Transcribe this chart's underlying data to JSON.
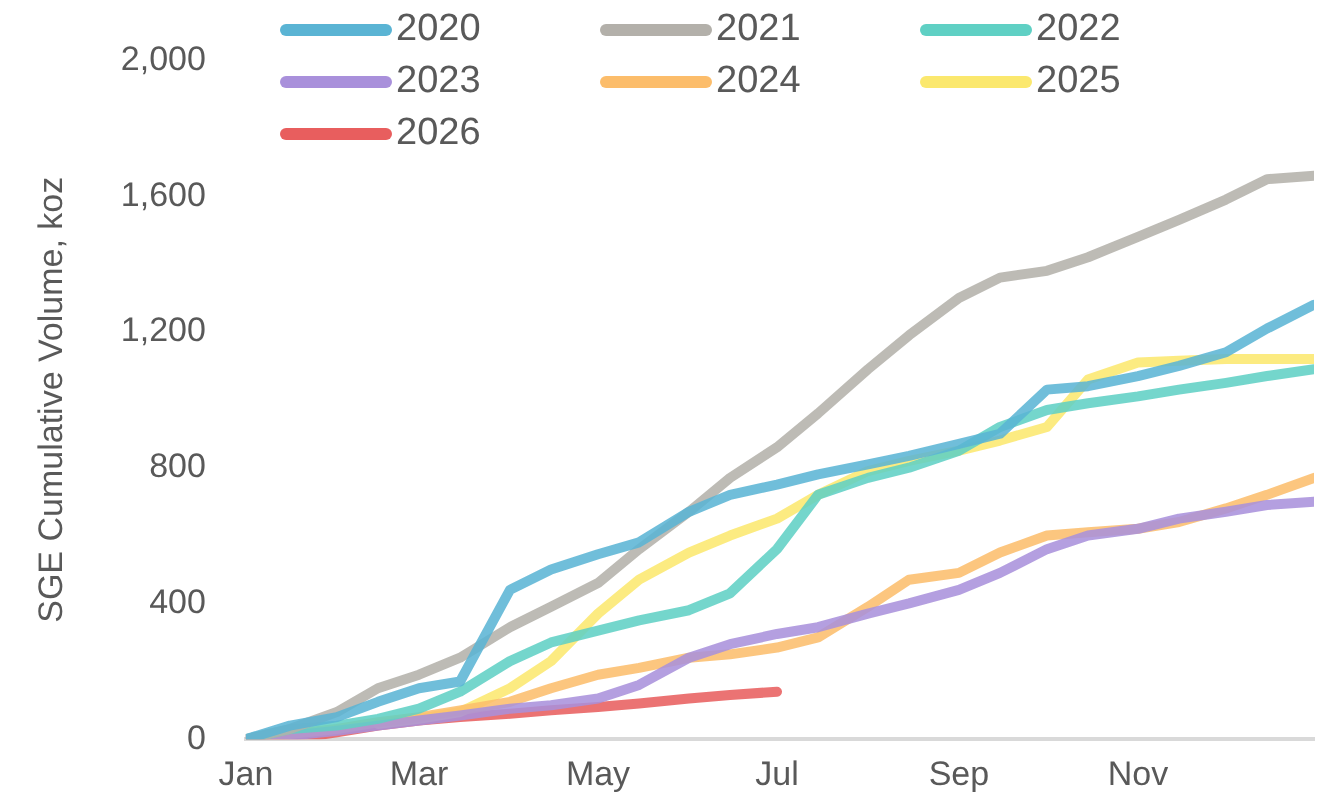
{
  "chart_data": {
    "type": "line",
    "ylabel": "SGE Cumulative Volume, koz",
    "x": [
      "--01-01",
      "--01-16",
      "--02-01",
      "--02-15",
      "--03-01",
      "--03-15",
      "--04-01",
      "--04-15",
      "--05-01",
      "--05-15",
      "--06-01",
      "--06-15",
      "--07-01",
      "--07-15",
      "--08-01",
      "--08-15",
      "--09-01",
      "--09-15",
      "--10-01",
      "--10-15",
      "--11-01",
      "--11-15",
      "--12-01",
      "--12-15",
      "--12-31"
    ],
    "series": [
      {
        "name": "2020",
        "color": "#5ab4d4",
        "values": [
          0,
          40,
          65,
          110,
          150,
          170,
          440,
          500,
          545,
          580,
          670,
          720,
          750,
          780,
          810,
          835,
          870,
          900,
          1030,
          1040,
          1070,
          1100,
          1140,
          1210,
          1280
        ]
      },
      {
        "name": "2021",
        "color": "#b3b0aa",
        "values": [
          0,
          30,
          80,
          150,
          190,
          240,
          330,
          390,
          460,
          560,
          670,
          770,
          860,
          960,
          1090,
          1190,
          1300,
          1360,
          1380,
          1420,
          1480,
          1530,
          1590,
          1650,
          1660
        ]
      },
      {
        "name": "2022",
        "color": "#5fd0c4",
        "values": [
          0,
          30,
          40,
          60,
          90,
          140,
          230,
          285,
          320,
          350,
          380,
          430,
          560,
          720,
          770,
          800,
          850,
          920,
          970,
          990,
          1010,
          1030,
          1050,
          1070,
          1090
        ]
      },
      {
        "name": "2023",
        "color": "#a990db",
        "values": [
          0,
          10,
          25,
          40,
          55,
          70,
          90,
          100,
          120,
          160,
          240,
          280,
          310,
          330,
          370,
          400,
          440,
          490,
          560,
          600,
          620,
          650,
          670,
          690,
          700
        ]
      },
      {
        "name": "2024",
        "color": "#fcbd6b",
        "values": [
          0,
          15,
          30,
          50,
          65,
          85,
          110,
          150,
          190,
          210,
          240,
          250,
          270,
          300,
          390,
          470,
          490,
          550,
          600,
          610,
          620,
          640,
          680,
          720,
          770
        ]
      },
      {
        "name": "2025",
        "color": "#fbe86e",
        "values": [
          null,
          null,
          null,
          45,
          60,
          80,
          150,
          230,
          370,
          470,
          550,
          600,
          650,
          720,
          790,
          820,
          850,
          880,
          920,
          1060,
          1110,
          1115,
          1120,
          1120,
          1120
        ]
      },
      {
        "name": "2026",
        "color": "#e85e5e",
        "values": [
          0,
          0,
          20,
          40,
          55,
          65,
          75,
          85,
          95,
          105,
          120,
          130,
          140,
          null,
          null,
          null,
          null,
          null,
          null,
          null,
          null,
          null,
          null,
          null,
          null
        ]
      }
    ],
    "xlim": [
      "--01-01",
      "--12-31"
    ],
    "xticks": [
      {
        "value": "--01-01",
        "label": "Jan"
      },
      {
        "value": "--03-01",
        "label": "Mar"
      },
      {
        "value": "--05-01",
        "label": "May"
      },
      {
        "value": "--07-01",
        "label": "Jul"
      },
      {
        "value": "--09-01",
        "label": "Sep"
      },
      {
        "value": "--11-01",
        "label": "Nov"
      }
    ],
    "ylim": [
      0,
      2000
    ],
    "yticks": [
      0,
      400,
      800,
      {
        "value": 1200,
        "label": "1,200"
      },
      {
        "value": 1600,
        "label": "1,600"
      },
      {
        "value": 2000,
        "label": "2,000"
      }
    ],
    "grid": false,
    "legend": "top left",
    "marker": "none",
    "line_style": "solid"
  }
}
